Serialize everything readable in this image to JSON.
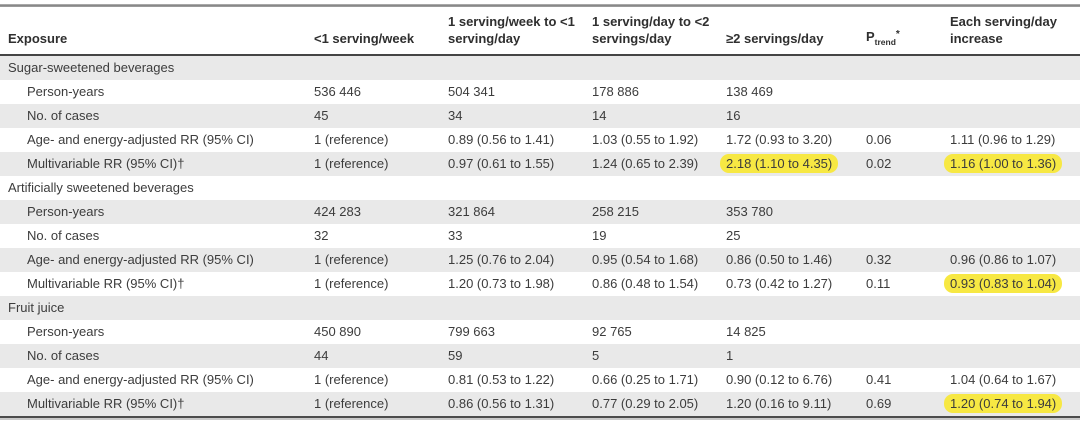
{
  "table": {
    "highlight_color": "#f7e843",
    "columns": [
      {
        "label": "Exposure"
      },
      {
        "label": "<1 serving/week"
      },
      {
        "label": "1 serving/week to <1 serving/day"
      },
      {
        "label": "1 serving/day to <2 servings/day"
      },
      {
        "label": "≥2 servings/day"
      },
      {
        "label": "P",
        "sub": "trend",
        "sup": "*"
      },
      {
        "label": "Each serving/day increase"
      }
    ],
    "sections": [
      {
        "title": "Sugar-sweetened beverages",
        "rows": [
          {
            "label": "Person-years",
            "values": [
              "536 446",
              "504 341",
              "178 886",
              "138 469",
              "",
              ""
            ],
            "highlights": []
          },
          {
            "label": "No. of cases",
            "values": [
              "45",
              "34",
              "14",
              "16",
              "",
              ""
            ],
            "highlights": []
          },
          {
            "label": "Age- and energy-adjusted RR (95% CI)",
            "values": [
              "1 (reference)",
              "0.89 (0.56 to 1.41)",
              "1.03 (0.55 to 1.92)",
              "1.72 (0.93 to 3.20)",
              "0.06",
              "1.11 (0.96 to 1.29)"
            ],
            "highlights": []
          },
          {
            "label": "Multivariable RR (95% CI)†",
            "values": [
              "1 (reference)",
              "0.97 (0.61 to 1.55)",
              "1.24 (0.65 to 2.39)",
              "2.18 (1.10 to 4.35)",
              "0.02",
              "1.16 (1.00 to 1.36)"
            ],
            "highlights": [
              3,
              5
            ]
          }
        ]
      },
      {
        "title": "Artificially sweetened beverages",
        "rows": [
          {
            "label": "Person-years",
            "values": [
              "424 283",
              "321 864",
              "258 215",
              "353 780",
              "",
              ""
            ],
            "highlights": []
          },
          {
            "label": "No. of cases",
            "values": [
              "32",
              "33",
              "19",
              "25",
              "",
              ""
            ],
            "highlights": []
          },
          {
            "label": "Age- and energy-adjusted RR (95% CI)",
            "values": [
              "1 (reference)",
              "1.25 (0.76 to 2.04)",
              "0.95 (0.54 to 1.68)",
              "0.86 (0.50 to 1.46)",
              "0.32",
              "0.96 (0.86 to 1.07)"
            ],
            "highlights": []
          },
          {
            "label": "Multivariable RR (95% CI)†",
            "values": [
              "1 (reference)",
              "1.20 (0.73 to 1.98)",
              "0.86 (0.48 to 1.54)",
              "0.73 (0.42 to 1.27)",
              "0.11",
              "0.93 (0.83 to 1.04)"
            ],
            "highlights": [
              5
            ]
          }
        ]
      },
      {
        "title": "Fruit juice",
        "rows": [
          {
            "label": "Person-years",
            "values": [
              "450 890",
              "799 663",
              "92 765",
              "14 825",
              "",
              ""
            ],
            "highlights": []
          },
          {
            "label": "No. of cases",
            "values": [
              "44",
              "59",
              "5",
              "1",
              "",
              ""
            ],
            "highlights": []
          },
          {
            "label": "Age- and energy-adjusted RR (95% CI)",
            "values": [
              "1 (reference)",
              "0.81 (0.53 to 1.22)",
              "0.66 (0.25 to 1.71)",
              "0.90 (0.12 to 6.76)",
              "0.41",
              "1.04 (0.64 to 1.67)"
            ],
            "highlights": []
          },
          {
            "label": "Multivariable RR (95% CI)†",
            "values": [
              "1 (reference)",
              "0.86 (0.56 to 1.31)",
              "0.77 (0.29 to 2.05)",
              "1.20 (0.16 to 9.11)",
              "0.69",
              "1.20 (0.74 to 1.94)"
            ],
            "highlights": [
              5
            ]
          }
        ]
      }
    ]
  }
}
